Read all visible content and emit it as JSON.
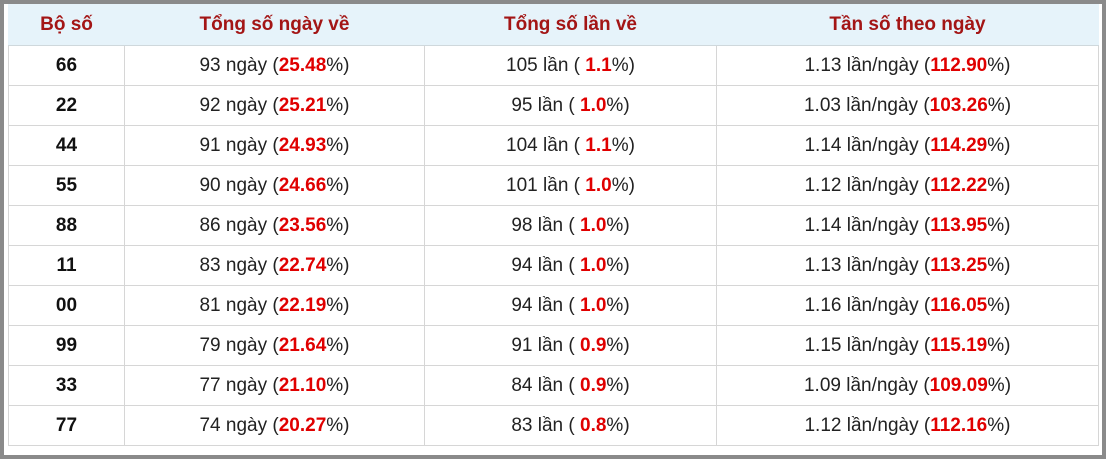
{
  "table": {
    "header": [
      "Bộ số",
      "Tổng số ngày về",
      "Tổng số lần về",
      "Tần số theo ngày"
    ],
    "rows": [
      [
        "66",
        [
          "93 ngày (",
          "25.48",
          "%)"
        ],
        [
          "105 lần ( ",
          "1.1",
          "%)"
        ],
        [
          "1.13 lần/ngày (",
          "112.90",
          "%)"
        ]
      ],
      [
        "22",
        [
          "92 ngày (",
          "25.21",
          "%)"
        ],
        [
          "95 lần ( ",
          "1.0",
          "%)"
        ],
        [
          "1.03 lần/ngày (",
          "103.26",
          "%)"
        ]
      ],
      [
        "44",
        [
          "91 ngày (",
          "24.93",
          "%)"
        ],
        [
          "104 lần ( ",
          "1.1",
          "%)"
        ],
        [
          "1.14 lần/ngày (",
          "114.29",
          "%)"
        ]
      ],
      [
        "55",
        [
          "90 ngày (",
          "24.66",
          "%)"
        ],
        [
          "101 lần ( ",
          "1.0",
          "%)"
        ],
        [
          "1.12 lần/ngày (",
          "112.22",
          "%)"
        ]
      ],
      [
        "88",
        [
          "86 ngày (",
          "23.56",
          "%)"
        ],
        [
          "98 lần ( ",
          "1.0",
          "%)"
        ],
        [
          "1.14 lần/ngày (",
          "113.95",
          "%)"
        ]
      ],
      [
        "11",
        [
          "83 ngày (",
          "22.74",
          "%)"
        ],
        [
          "94 lần ( ",
          "1.0",
          "%)"
        ],
        [
          "1.13 lần/ngày (",
          "113.25",
          "%)"
        ]
      ],
      [
        "00",
        [
          "81 ngày (",
          "22.19",
          "%)"
        ],
        [
          "94 lần ( ",
          "1.0",
          "%)"
        ],
        [
          "1.16 lần/ngày (",
          "116.05",
          "%)"
        ]
      ],
      [
        "99",
        [
          "79 ngày (",
          "21.64",
          "%)"
        ],
        [
          "91 lần ( ",
          "0.9",
          "%)"
        ],
        [
          "1.15 lần/ngày (",
          "115.19",
          "%)"
        ]
      ],
      [
        "33",
        [
          "77 ngày (",
          "21.10",
          "%)"
        ],
        [
          "84 lần ( ",
          "0.9",
          "%)"
        ],
        [
          "1.09 lần/ngày (",
          "109.09",
          "%)"
        ]
      ],
      [
        "77",
        [
          "74 ngày (",
          "20.27",
          "%)"
        ],
        [
          "83 lần ( ",
          "0.8",
          "%)"
        ],
        [
          "1.12 lần/ngày (",
          "112.16",
          "%)"
        ]
      ]
    ]
  }
}
